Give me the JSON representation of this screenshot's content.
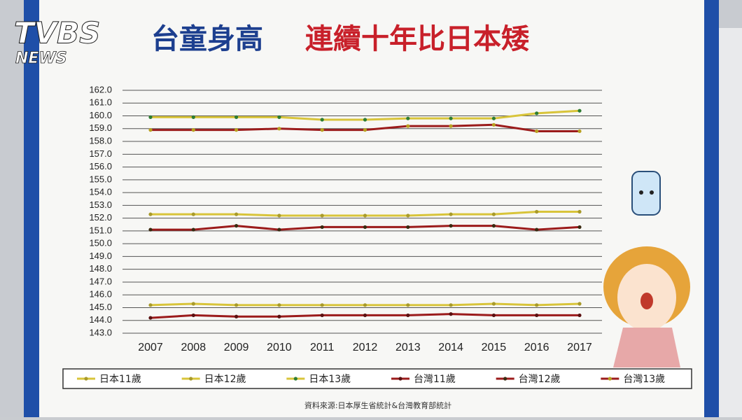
{
  "watermark": {
    "logo": "TVBS",
    "sub": "NEWS"
  },
  "chart_data": {
    "type": "line",
    "title_lead": "台童身高",
    "title_rest": "連續十年比日本矮",
    "source": "資料來源:日本厚生省統計&台灣教育部統計",
    "categories": [
      "2007",
      "2008",
      "2009",
      "2010",
      "2011",
      "2012",
      "2013",
      "2014",
      "2015",
      "2016",
      "2017"
    ],
    "ylim": [
      143,
      162
    ],
    "yticks": [
      {
        "value": 143,
        "label": "143.0"
      },
      {
        "value": 144,
        "label": "144.0"
      },
      {
        "value": 145,
        "label": "145.0"
      },
      {
        "value": 146,
        "label": "146.0"
      },
      {
        "value": 147,
        "label": "147.0"
      },
      {
        "value": 148,
        "label": "148.0"
      },
      {
        "value": 149,
        "label": "149.0"
      },
      {
        "value": 150,
        "label": "150.0"
      },
      {
        "value": 151,
        "label": "151.0"
      },
      {
        "value": 152,
        "label": "152.0"
      },
      {
        "value": 153,
        "label": "153.0"
      },
      {
        "value": 154,
        "label": "154.0"
      },
      {
        "value": 155,
        "label": "155.0"
      },
      {
        "value": 156,
        "label": "156.0"
      },
      {
        "value": 157,
        "label": "157.0"
      },
      {
        "value": 158,
        "label": "158.0"
      },
      {
        "value": 159,
        "label": "159.0"
      },
      {
        "value": 160,
        "label": "160.0"
      },
      {
        "value": 161,
        "label": "161.0"
      },
      {
        "value": 162,
        "label": "162.0"
      }
    ],
    "grid": true,
    "legend": "bottom",
    "series": [
      {
        "name": "日本11歲",
        "color": "#d8c43a",
        "marker_color": "#a89a2a",
        "values": [
          145.2,
          145.3,
          145.2,
          145.2,
          145.2,
          145.2,
          145.2,
          145.2,
          145.3,
          145.2,
          145.3
        ]
      },
      {
        "name": "日本12歲",
        "color": "#d8c43a",
        "marker_color": "#a89a2a",
        "values": [
          152.3,
          152.3,
          152.3,
          152.2,
          152.2,
          152.2,
          152.2,
          152.3,
          152.3,
          152.5,
          152.5
        ]
      },
      {
        "name": "日本13歲",
        "color": "#d8c43a",
        "marker_color": "#2e7d32",
        "values": [
          159.9,
          159.9,
          159.9,
          159.9,
          159.7,
          159.7,
          159.8,
          159.8,
          159.8,
          160.2,
          160.4
        ]
      },
      {
        "name": "台灣11歲",
        "color": "#9b1b1b",
        "marker_color": "#5a1010",
        "values": [
          144.2,
          144.4,
          144.3,
          144.3,
          144.4,
          144.4,
          144.4,
          144.5,
          144.4,
          144.4,
          144.4
        ]
      },
      {
        "name": "台灣12歲",
        "color": "#9b1b1b",
        "marker_color": "#3a2a10",
        "values": [
          151.1,
          151.1,
          151.4,
          151.1,
          151.3,
          151.3,
          151.3,
          151.4,
          151.4,
          151.1,
          151.3
        ]
      },
      {
        "name": "台灣13歲",
        "color": "#9b1b1b",
        "marker_color": "#b8a020",
        "values": [
          158.9,
          158.9,
          158.9,
          159.0,
          158.9,
          158.9,
          159.2,
          159.2,
          159.3,
          158.8,
          158.8
        ]
      }
    ]
  }
}
